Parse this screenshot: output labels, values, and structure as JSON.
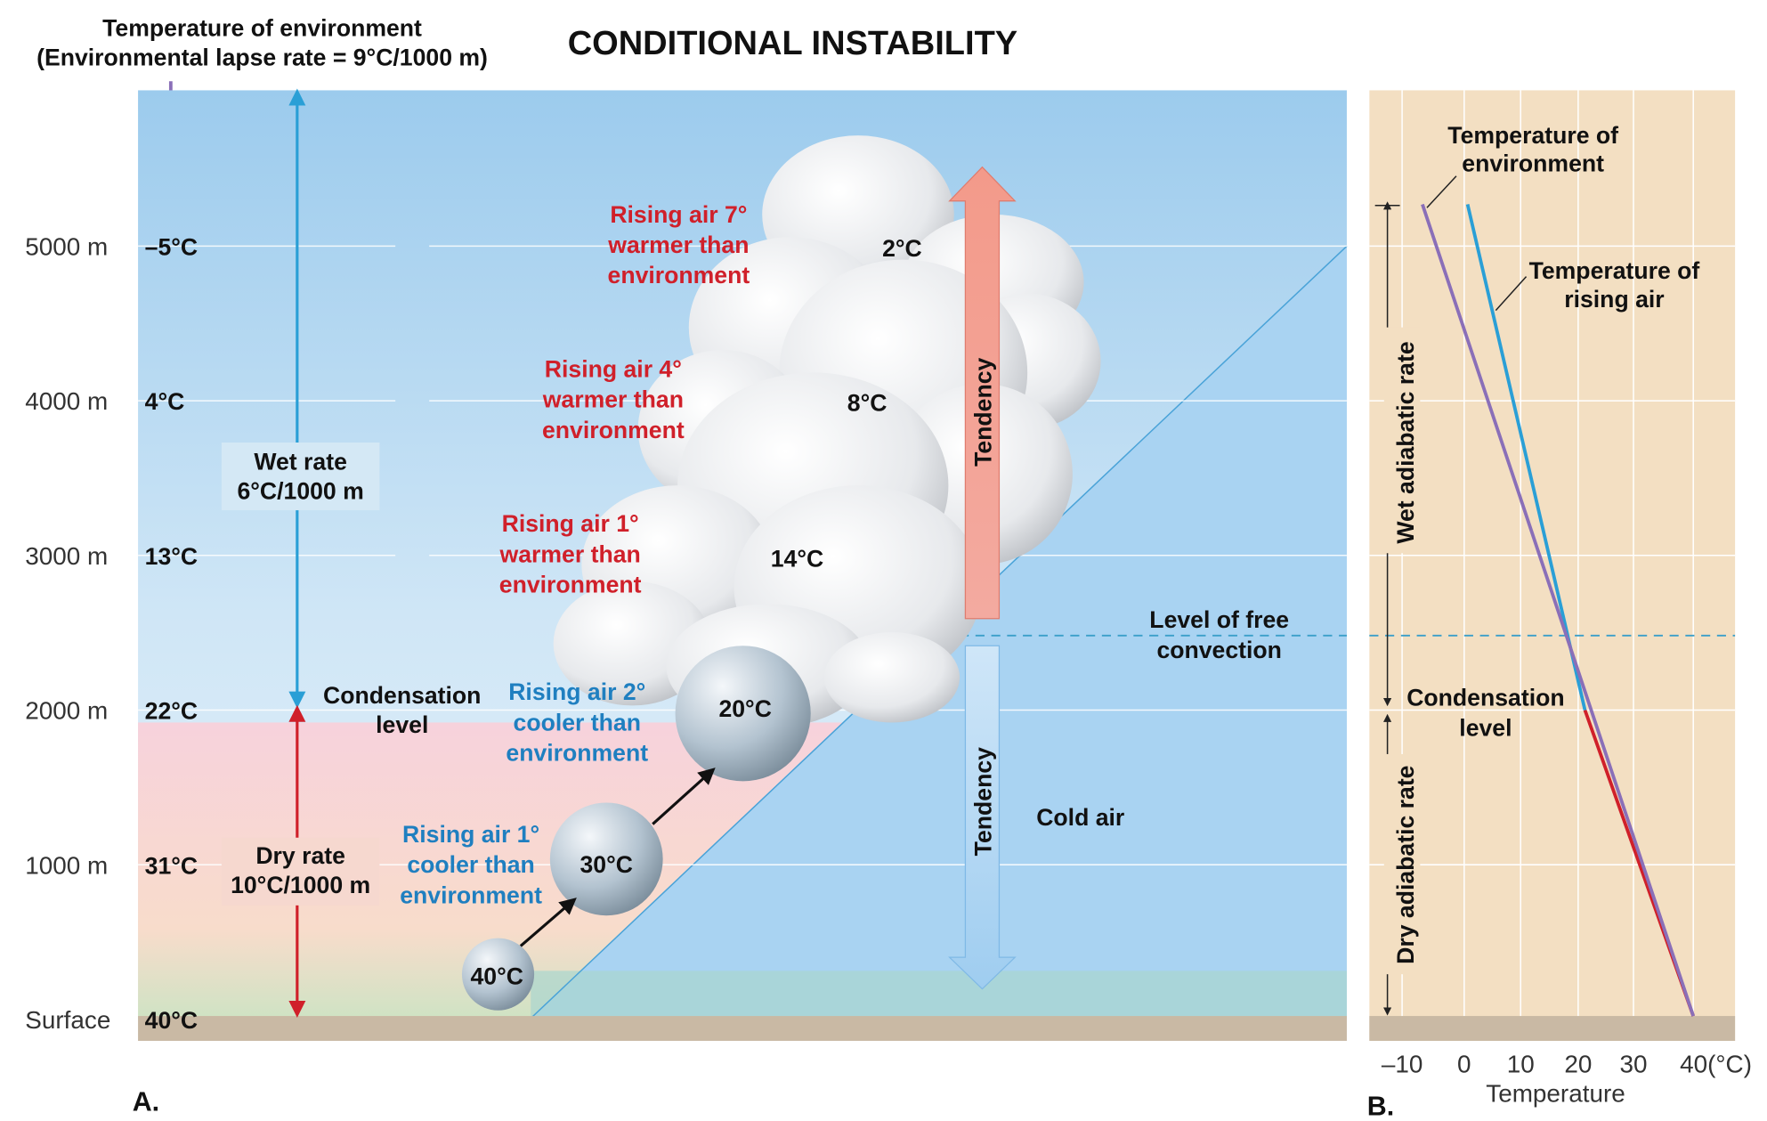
{
  "title": "CONDITIONAL INSTABILITY",
  "environment_note": [
    "Temperature of environment",
    "(Environmental lapse rate = 9°C/1000 m)"
  ],
  "panel_a": {
    "label": "A.",
    "levels": [
      {
        "altitude": "5000 m",
        "temperature": "–5°C"
      },
      {
        "altitude": "4000 m",
        "temperature": "4°C"
      },
      {
        "altitude": "3000 m",
        "temperature": "13°C"
      },
      {
        "altitude": "2000 m",
        "temperature": "22°C"
      },
      {
        "altitude": "1000 m",
        "temperature": "31°C"
      },
      {
        "altitude": "Surface",
        "temperature": "40°C"
      }
    ],
    "wet_rate": [
      "Wet rate",
      "6°C/1000 m"
    ],
    "dry_rate": [
      "Dry rate",
      "10°C/1000 m"
    ],
    "condensation_level": [
      "Condensation",
      "level"
    ],
    "parcels": [
      "40°C",
      "30°C",
      "20°C",
      "14°C",
      "8°C",
      "2°C"
    ],
    "comparisons": [
      [
        "Rising air 1°",
        "cooler than",
        "environment"
      ],
      [
        "Rising air 2°",
        "cooler than",
        "environment"
      ],
      [
        "Rising air 1°",
        "warmer than",
        "environment"
      ],
      [
        "Rising air 4°",
        "warmer than",
        "environment"
      ],
      [
        "Rising air 7°",
        "warmer than",
        "environment"
      ]
    ],
    "tendency_up": "Tendency",
    "tendency_down": "Tendency",
    "level_of_free_convection": [
      "Level of free",
      "convection"
    ],
    "cold_air": "Cold air"
  },
  "panel_b": {
    "label": "B.",
    "environment_line": [
      "Temperature of",
      "environment"
    ],
    "rising_air_line": [
      "Temperature of",
      "rising air"
    ],
    "wet_adiabatic_rate": "Wet adiabatic rate",
    "dry_adiabatic_rate": "Dry adiabatic rate",
    "condensation_level": [
      "Condensation",
      "level"
    ],
    "xticks": [
      "–10",
      "0",
      "10",
      "20",
      "30",
      "40(°C)"
    ],
    "xlabel": "Temperature"
  }
}
